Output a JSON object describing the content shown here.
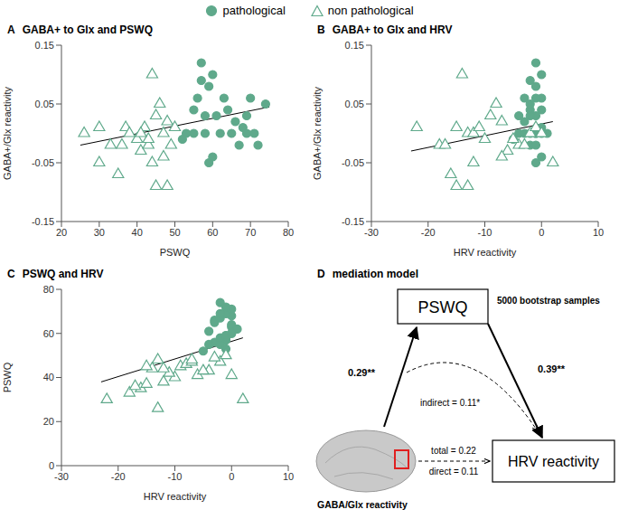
{
  "chart_data": [
    {
      "type": "scatter",
      "panel": "A",
      "title": "GABA+ to Glx and PSWQ",
      "x_label": "PSWQ",
      "y_label": "GABA+/Glx reactivity",
      "xlim": [
        20,
        80
      ],
      "xticks": [
        20,
        30,
        40,
        50,
        60,
        70,
        80
      ],
      "ylim": [
        -0.15,
        0.15
      ],
      "yticks": [
        -0.15,
        -0.05,
        0.05,
        0.15
      ],
      "legend": "top",
      "series": [
        {
          "name": "pathological",
          "color": "#5fa98b",
          "marker": "circle",
          "x": [
            57,
            57,
            60,
            59,
            56,
            63,
            55,
            58,
            61,
            64,
            70,
            74,
            66,
            68,
            53,
            55,
            58,
            62,
            65,
            69,
            71,
            67,
            72,
            59,
            60,
            69,
            52
          ],
          "y": [
            0.12,
            0.09,
            0.1,
            0.08,
            0.06,
            0.06,
            0.04,
            0.03,
            0.03,
            0.04,
            0.06,
            0.05,
            0.02,
            0.01,
            0.0,
            0.0,
            0.0,
            0.0,
            0.0,
            0.0,
            0.0,
            -0.02,
            -0.02,
            -0.05,
            -0.04,
            0.03,
            -0.01
          ]
        },
        {
          "name": "non pathological",
          "color": "#5fa98b",
          "marker": "open_triangle",
          "x": [
            26,
            30,
            33,
            35,
            37,
            38,
            40,
            41,
            42,
            43,
            44,
            45,
            46,
            47,
            45,
            48,
            47,
            44,
            43,
            49,
            48,
            50,
            41,
            36,
            30
          ],
          "y": [
            0.0,
            0.01,
            -0.02,
            -0.07,
            0.01,
            0.0,
            -0.01,
            -0.03,
            0.01,
            -0.02,
            0.1,
            0.03,
            0.05,
            -0.04,
            -0.09,
            -0.09,
            0.0,
            -0.05,
            -0.01,
            -0.02,
            0.02,
            0.01,
            0.0,
            -0.02,
            -0.05
          ]
        }
      ],
      "trend_line": {
        "x": [
          25,
          75
        ],
        "y": [
          -0.02,
          0.045
        ],
        "color": "#000000"
      }
    },
    {
      "type": "scatter",
      "panel": "B",
      "title": "GABA+ to Glx and HRV",
      "x_label": "HRV reactivity",
      "y_label": "GABA+/Glx reactivity",
      "xlim": [
        -30,
        10
      ],
      "xticks": [
        -30,
        -20,
        -10,
        0,
        10
      ],
      "ylim": [
        -0.15,
        0.15
      ],
      "yticks": [
        -0.15,
        -0.05,
        0.05,
        0.15
      ],
      "series": [
        {
          "name": "pathological",
          "color": "#5fa98b",
          "marker": "circle",
          "x": [
            -1,
            -2,
            0,
            -1,
            -3,
            0,
            -2,
            -1,
            -4,
            0,
            -1,
            -2,
            -3,
            0,
            -1,
            -4,
            -2,
            1,
            -3,
            -1,
            0,
            -2,
            -1,
            -1,
            0,
            -2,
            -5
          ],
          "y": [
            0.12,
            0.09,
            0.1,
            0.08,
            0.06,
            0.06,
            0.04,
            0.03,
            0.03,
            0.04,
            0.06,
            0.05,
            0.02,
            0.01,
            0.0,
            0.0,
            0.0,
            0.0,
            0.0,
            0.0,
            0.0,
            -0.02,
            -0.02,
            -0.05,
            -0.04,
            0.03,
            -0.01
          ]
        },
        {
          "name": "non pathological",
          "color": "#5fa98b",
          "marker": "open_triangle",
          "x": [
            -13,
            -22,
            -18,
            -16,
            -15,
            -12,
            -10,
            -6,
            -11,
            -4,
            -14,
            -9,
            -8,
            -7,
            -15,
            -13,
            -2,
            -12,
            -5,
            -3,
            -7,
            -1,
            0,
            -17,
            2
          ],
          "y": [
            0.0,
            0.01,
            -0.02,
            -0.07,
            0.01,
            0.0,
            -0.01,
            -0.03,
            0.01,
            -0.02,
            0.1,
            0.03,
            0.05,
            -0.04,
            -0.09,
            -0.09,
            0.0,
            -0.05,
            -0.01,
            -0.02,
            0.02,
            0.01,
            0.0,
            -0.02,
            -0.05
          ]
        }
      ],
      "trend_line": {
        "x": [
          -23,
          2
        ],
        "y": [
          -0.03,
          0.02
        ],
        "color": "#000000"
      }
    },
    {
      "type": "scatter",
      "panel": "C",
      "title": "PSWQ and HRV",
      "x_label": "HRV reactivity",
      "y_label": "PSWQ",
      "xlim": [
        -30,
        10
      ],
      "xticks": [
        -30,
        -20,
        -10,
        0,
        10
      ],
      "ylim": [
        0,
        80
      ],
      "yticks": [
        0,
        20,
        40,
        60,
        80
      ],
      "series": [
        {
          "name": "pathological",
          "color": "#5fa98b",
          "marker": "circle",
          "x": [
            -1,
            -2,
            0,
            -1,
            -3,
            0,
            -2,
            -1,
            -4,
            0,
            -1,
            -2,
            -3,
            0,
            -1,
            -4,
            -2,
            1,
            -3,
            -1,
            0,
            -2,
            -1,
            -1,
            0,
            -2,
            -5
          ],
          "y": [
            57,
            57,
            60,
            59,
            56,
            63,
            55,
            58,
            61,
            64,
            70,
            74,
            66,
            68,
            53,
            55,
            58,
            62,
            65,
            69,
            71,
            67,
            72,
            59,
            60,
            69,
            52
          ]
        },
        {
          "name": "non pathological",
          "color": "#5fa98b",
          "marker": "open_triangle",
          "x": [
            -13,
            -22,
            -18,
            -16,
            -15,
            -12,
            -10,
            -6,
            -11,
            -4,
            -14,
            -9,
            -8,
            -7,
            -15,
            -13,
            -2,
            -12,
            -5,
            -3,
            -7,
            -1,
            0,
            -17,
            2
          ],
          "y": [
            26,
            30,
            33,
            35,
            37,
            38,
            40,
            41,
            42,
            43,
            44,
            45,
            46,
            47,
            45,
            48,
            47,
            44,
            43,
            49,
            48,
            50,
            41,
            36,
            30
          ]
        }
      ],
      "trend_line": {
        "x": [
          -23,
          2
        ],
        "y": [
          38,
          58
        ],
        "color": "#000000"
      }
    }
  ],
  "diagram": {
    "panel": "D",
    "title": "mediation model",
    "note": "5000 bootstrap samples",
    "nodes": {
      "mediator": "PSWQ",
      "outcome": "HRV reactivity",
      "predictor": "GABA/Glx reactivity"
    },
    "paths": {
      "a": "0.29**",
      "b": "0.39**",
      "indirect": "indirect = 0.11*",
      "total": "total = 0.22",
      "direct": "direct = 0.11"
    }
  }
}
